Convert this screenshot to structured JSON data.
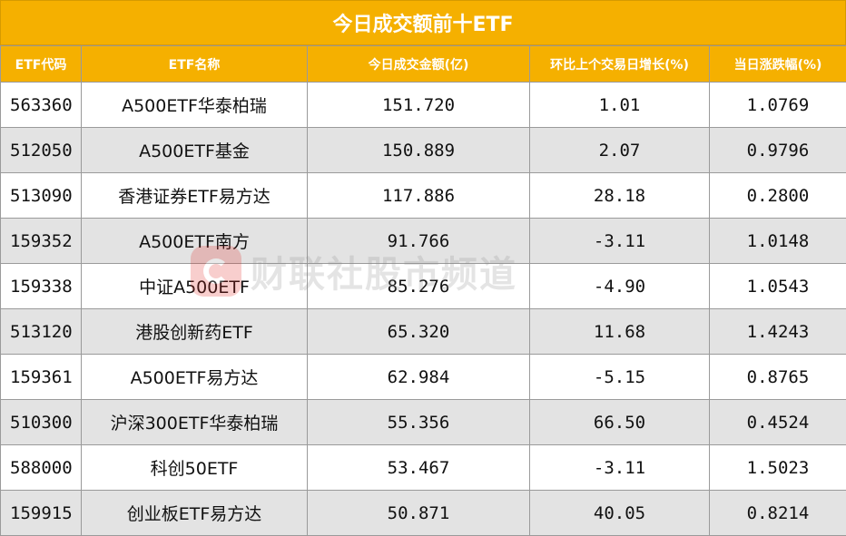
{
  "title": "今日成交额前十ETF",
  "headers": [
    "ETF代码",
    "ETF名称",
    "今日成交金额(亿)",
    "环比上个交易日增长(%)",
    "当日涨跌幅(%)"
  ],
  "rows": [
    {
      "code": "563360",
      "name": "A500ETF华泰柏瑞",
      "amount": "151.720",
      "growth": "1.01",
      "change": "1.0769"
    },
    {
      "code": "512050",
      "name": "A500ETF基金",
      "amount": "150.889",
      "growth": "2.07",
      "change": "0.9796"
    },
    {
      "code": "513090",
      "name": "香港证券ETF易方达",
      "amount": "117.886",
      "growth": "28.18",
      "change": "0.2800"
    },
    {
      "code": "159352",
      "name": "A500ETF南方",
      "amount": "91.766",
      "growth": "-3.11",
      "change": "1.0148"
    },
    {
      "code": "159338",
      "name": "中证A500ETF",
      "amount": "85.276",
      "growth": "-4.90",
      "change": "1.0543"
    },
    {
      "code": "513120",
      "name": "港股创新药ETF",
      "amount": "65.320",
      "growth": "11.68",
      "change": "1.4243"
    },
    {
      "code": "159361",
      "name": "A500ETF易方达",
      "amount": "62.984",
      "growth": "-5.15",
      "change": "0.8765"
    },
    {
      "code": "510300",
      "name": "沪深300ETF华泰柏瑞",
      "amount": "55.356",
      "growth": "66.50",
      "change": "0.4524"
    },
    {
      "code": "588000",
      "name": "科创50ETF",
      "amount": "53.467",
      "growth": "-3.11",
      "change": "1.5023"
    },
    {
      "code": "159915",
      "name": "创业板ETF易方达",
      "amount": "50.871",
      "growth": "40.05",
      "change": "0.8214"
    }
  ],
  "watermark": {
    "text": "财联社股市频道",
    "icon": "cls-logo-icon"
  },
  "colors": {
    "header_bg": "#f5b000",
    "alt_row": "#e3e3e3",
    "text": "#111111"
  }
}
